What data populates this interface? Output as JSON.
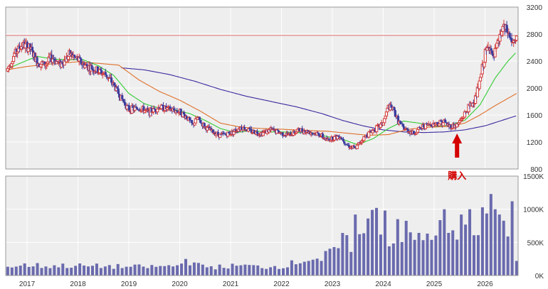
{
  "colors": {
    "panel_bg": "#eeeeee",
    "grid": "#ffffff",
    "border": "#999999",
    "candle_up": "#d43c3c",
    "candle_down": "#3c3c9c",
    "ma_short": "#33cc33",
    "ma_mid": "#e0702a",
    "ma_long": "#3a2aa0",
    "volume_bar": "#6a6aae",
    "ref_line": "#e07070",
    "annotation": "#d40000"
  },
  "annotation": {
    "text": "購入",
    "icon": "up-arrow-icon",
    "date": 2025.45
  },
  "chart_data": [
    {
      "type": "candlestick",
      "title": "",
      "x_ticks": [
        2017,
        2018,
        2019,
        2020,
        2021,
        2022,
        2023,
        2024,
        2025,
        2026
      ],
      "x_tick_labels": [
        "2017",
        "2018",
        "2019",
        "2020",
        "2021",
        "2022",
        "2023",
        "2024",
        "2025",
        "2026"
      ],
      "xlim": [
        2016.58,
        2026.65
      ],
      "ylim": [
        800,
        3200
      ],
      "y_ticks": [
        800,
        1200,
        1600,
        2000,
        2400,
        2800,
        3200
      ],
      "y_tick_labels": [
        "800",
        "1200",
        "1600",
        "2000",
        "2400",
        "2800",
        "3200"
      ],
      "y_axis_side": "right",
      "grid": true,
      "reference_line": 2780,
      "anchors": [
        [
          2016.6,
          2250
        ],
        [
          2016.75,
          2500
        ],
        [
          2016.9,
          2640
        ],
        [
          2017.05,
          2600
        ],
        [
          2017.2,
          2380
        ],
        [
          2017.35,
          2350
        ],
        [
          2017.5,
          2450
        ],
        [
          2017.65,
          2350
        ],
        [
          2017.75,
          2420
        ],
        [
          2017.85,
          2500
        ],
        [
          2018.0,
          2420
        ],
        [
          2018.1,
          2350
        ],
        [
          2018.25,
          2300
        ],
        [
          2018.4,
          2250
        ],
        [
          2018.55,
          2200
        ],
        [
          2018.7,
          2050
        ],
        [
          2018.85,
          1850
        ],
        [
          2019.0,
          1680
        ],
        [
          2019.2,
          1700
        ],
        [
          2019.4,
          1640
        ],
        [
          2019.6,
          1720
        ],
        [
          2019.8,
          1680
        ],
        [
          2020.0,
          1650
        ],
        [
          2020.15,
          1560
        ],
        [
          2020.25,
          1450
        ],
        [
          2020.35,
          1550
        ],
        [
          2020.5,
          1420
        ],
        [
          2020.65,
          1350
        ],
        [
          2020.8,
          1300
        ],
        [
          2021.0,
          1330
        ],
        [
          2021.2,
          1420
        ],
        [
          2021.4,
          1360
        ],
        [
          2021.6,
          1330
        ],
        [
          2021.8,
          1380
        ],
        [
          2022.0,
          1330
        ],
        [
          2022.15,
          1300
        ],
        [
          2022.35,
          1380
        ],
        [
          2022.55,
          1350
        ],
        [
          2022.75,
          1310
        ],
        [
          2022.9,
          1220
        ],
        [
          2023.0,
          1260
        ],
        [
          2023.15,
          1290
        ],
        [
          2023.3,
          1150
        ],
        [
          2023.45,
          1100
        ],
        [
          2023.6,
          1250
        ],
        [
          2023.75,
          1350
        ],
        [
          2023.9,
          1420
        ],
        [
          2024.0,
          1480
        ],
        [
          2024.1,
          1720
        ],
        [
          2024.2,
          1680
        ],
        [
          2024.3,
          1500
        ],
        [
          2024.4,
          1400
        ],
        [
          2024.6,
          1330
        ],
        [
          2024.8,
          1440
        ],
        [
          2025.0,
          1470
        ],
        [
          2025.2,
          1500
        ],
        [
          2025.3,
          1430
        ],
        [
          2025.45,
          1450
        ],
        [
          2025.55,
          1550
        ],
        [
          2025.65,
          1680
        ],
        [
          2025.8,
          1820
        ],
        [
          2025.9,
          2100
        ],
        [
          2026.0,
          2500
        ],
        [
          2026.1,
          2650
        ],
        [
          2026.15,
          2400
        ],
        [
          2026.25,
          2650
        ],
        [
          2026.35,
          2900
        ],
        [
          2026.45,
          2820
        ],
        [
          2026.55,
          2650
        ],
        [
          2026.62,
          2700
        ]
      ],
      "moving_averages": [
        {
          "key": "ma_short",
          "points": [
            [
              2016.6,
              2280
            ],
            [
              2016.9,
              2380
            ],
            [
              2017.2,
              2470
            ],
            [
              2017.5,
              2430
            ],
            [
              2017.8,
              2420
            ],
            [
              2018.1,
              2420
            ],
            [
              2018.4,
              2330
            ],
            [
              2018.7,
              2190
            ],
            [
              2019.0,
              1920
            ],
            [
              2019.3,
              1770
            ],
            [
              2019.6,
              1700
            ],
            [
              2019.9,
              1680
            ],
            [
              2020.2,
              1620
            ],
            [
              2020.5,
              1520
            ],
            [
              2020.8,
              1400
            ],
            [
              2021.1,
              1340
            ],
            [
              2021.4,
              1370
            ],
            [
              2021.7,
              1350
            ],
            [
              2022.0,
              1350
            ],
            [
              2022.3,
              1340
            ],
            [
              2022.6,
              1340
            ],
            [
              2022.9,
              1280
            ],
            [
              2023.2,
              1240
            ],
            [
              2023.5,
              1160
            ],
            [
              2023.8,
              1250
            ],
            [
              2024.1,
              1400
            ],
            [
              2024.4,
              1510
            ],
            [
              2024.7,
              1480
            ],
            [
              2025.0,
              1430
            ],
            [
              2025.3,
              1450
            ],
            [
              2025.6,
              1520
            ],
            [
              2025.9,
              1750
            ],
            [
              2026.2,
              2150
            ],
            [
              2026.45,
              2400
            ],
            [
              2026.6,
              2520
            ]
          ]
        },
        {
          "key": "ma_mid",
          "points": [
            [
              2016.6,
              2270
            ],
            [
              2017.0,
              2320
            ],
            [
              2017.5,
              2360
            ],
            [
              2018.0,
              2390
            ],
            [
              2018.5,
              2360
            ],
            [
              2018.8,
              2340
            ],
            [
              2019.2,
              2120
            ],
            [
              2019.6,
              1950
            ],
            [
              2020.0,
              1820
            ],
            [
              2020.4,
              1660
            ],
            [
              2020.8,
              1480
            ],
            [
              2021.2,
              1420
            ],
            [
              2021.6,
              1400
            ],
            [
              2022.0,
              1390
            ],
            [
              2022.5,
              1370
            ],
            [
              2022.9,
              1360
            ],
            [
              2023.3,
              1330
            ],
            [
              2023.7,
              1300
            ],
            [
              2024.1,
              1310
            ],
            [
              2024.5,
              1390
            ],
            [
              2024.9,
              1420
            ],
            [
              2025.3,
              1430
            ],
            [
              2025.6,
              1480
            ],
            [
              2025.9,
              1600
            ],
            [
              2026.2,
              1740
            ],
            [
              2026.62,
              1920
            ]
          ]
        },
        {
          "key": "ma_long",
          "points": [
            [
              2018.85,
              2300
            ],
            [
              2019.3,
              2270
            ],
            [
              2019.8,
              2200
            ],
            [
              2020.3,
              2100
            ],
            [
              2020.8,
              1980
            ],
            [
              2021.3,
              1880
            ],
            [
              2021.8,
              1800
            ],
            [
              2022.3,
              1720
            ],
            [
              2022.8,
              1620
            ],
            [
              2023.2,
              1520
            ],
            [
              2023.6,
              1440
            ],
            [
              2024.0,
              1380
            ],
            [
              2024.4,
              1350
            ],
            [
              2024.8,
              1340
            ],
            [
              2025.2,
              1350
            ],
            [
              2025.6,
              1380
            ],
            [
              2026.0,
              1440
            ],
            [
              2026.62,
              1590
            ]
          ]
        }
      ]
    },
    {
      "type": "bar",
      "title": "",
      "xlim": [
        2016.58,
        2026.65
      ],
      "ylim": [
        0,
        1500000
      ],
      "y_ticks": [
        0,
        500000,
        1000000,
        1500000
      ],
      "y_tick_labels": [
        "0K",
        "500K",
        "1000K",
        "1500K"
      ],
      "y_axis_side": "right",
      "grid": true,
      "anchors": [
        [
          2016.6,
          130000
        ],
        [
          2017.0,
          160000
        ],
        [
          2017.4,
          140000
        ],
        [
          2017.8,
          150000
        ],
        [
          2018.2,
          140000
        ],
        [
          2018.6,
          140000
        ],
        [
          2019.0,
          130000
        ],
        [
          2019.4,
          130000
        ],
        [
          2019.8,
          140000
        ],
        [
          2020.0,
          160000
        ],
        [
          2020.2,
          200000
        ],
        [
          2020.4,
          140000
        ],
        [
          2020.8,
          130000
        ],
        [
          2021.2,
          150000
        ],
        [
          2021.6,
          130000
        ],
        [
          2022.0,
          140000
        ],
        [
          2022.2,
          180000
        ],
        [
          2022.4,
          230000
        ],
        [
          2022.6,
          260000
        ],
        [
          2022.8,
          260000
        ],
        [
          2023.0,
          350000
        ],
        [
          2023.2,
          500000
        ],
        [
          2023.4,
          450000
        ],
        [
          2023.6,
          600000
        ],
        [
          2023.8,
          850000
        ],
        [
          2024.0,
          600000
        ],
        [
          2024.2,
          550000
        ],
        [
          2024.4,
          680000
        ],
        [
          2024.6,
          550000
        ],
        [
          2024.8,
          550000
        ],
        [
          2025.0,
          700000
        ],
        [
          2025.2,
          650000
        ],
        [
          2025.4,
          550000
        ],
        [
          2025.6,
          650000
        ],
        [
          2025.8,
          700000
        ],
        [
          2026.0,
          850000
        ],
        [
          2026.1,
          1100000
        ],
        [
          2026.25,
          800000
        ],
        [
          2026.4,
          600000
        ],
        [
          2026.5,
          900000
        ],
        [
          2026.62,
          800000
        ]
      ],
      "peaks": [
        [
          2023.45,
          920000
        ],
        [
          2023.8,
          990000
        ],
        [
          2023.9,
          1020000
        ],
        [
          2024.0,
          980000
        ],
        [
          2024.3,
          850000
        ],
        [
          2025.2,
          1000000
        ],
        [
          2025.5,
          920000
        ],
        [
          2025.7,
          1000000
        ],
        [
          2026.1,
          1230000
        ],
        [
          2026.2,
          1000000
        ],
        [
          2026.55,
          1120000
        ],
        [
          2022.8,
          220000
        ],
        [
          2020.15,
          250000
        ]
      ],
      "last_bar": 220000
    }
  ]
}
